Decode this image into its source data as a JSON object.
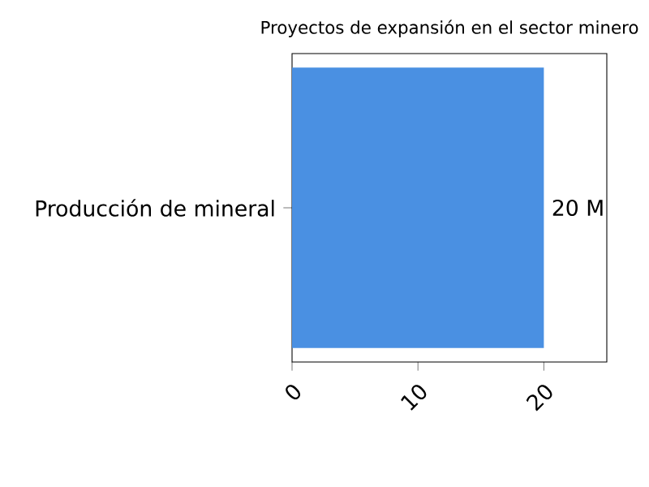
{
  "chart_data": {
    "type": "bar",
    "orientation": "horizontal",
    "title": "Proyectos de expansión en el sector minero",
    "categories": [
      "Producción de mineral"
    ],
    "values": [
      20
    ],
    "value_labels": [
      "20 M"
    ],
    "color": "#4a90e2",
    "xlim": [
      0,
      25
    ],
    "xticks": [
      0,
      10,
      20
    ],
    "grid": false
  }
}
